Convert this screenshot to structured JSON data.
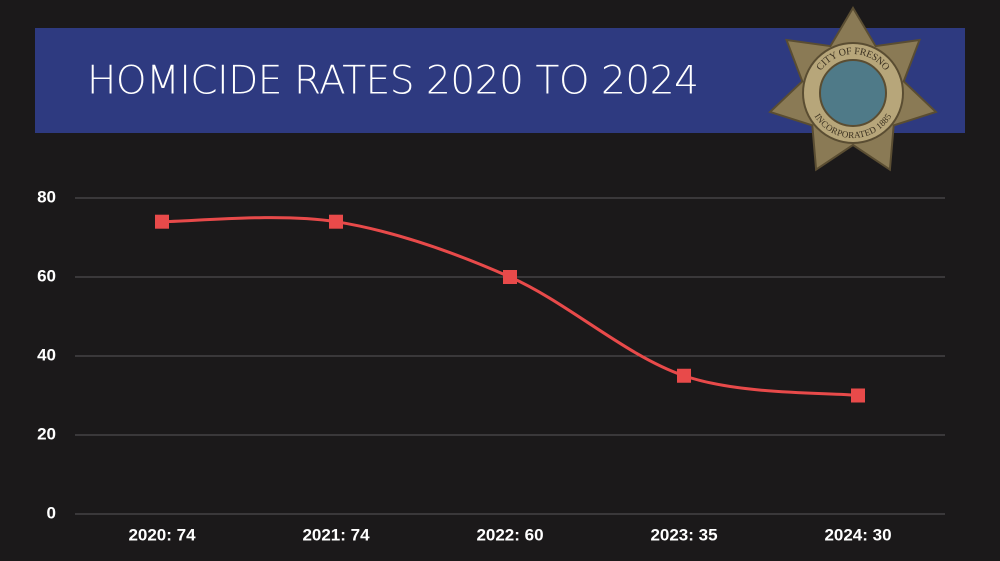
{
  "chart_data": {
    "type": "line",
    "title": "HOMICIDE RATES 2020 TO 2024",
    "categories": [
      "2020: 74",
      "2021: 74",
      "2022: 60",
      "2023: 35",
      "2024: 30"
    ],
    "values": [
      74,
      74,
      60,
      35,
      30
    ],
    "color": "#e84a4a",
    "ylim": [
      0,
      80
    ],
    "yticks": [
      0,
      20,
      40,
      60,
      80
    ],
    "grid": true,
    "smooth": true,
    "marker": "square"
  },
  "badge": {
    "top": "CITY OF FRESNO",
    "bottom": "INCORPORATED 1885"
  }
}
